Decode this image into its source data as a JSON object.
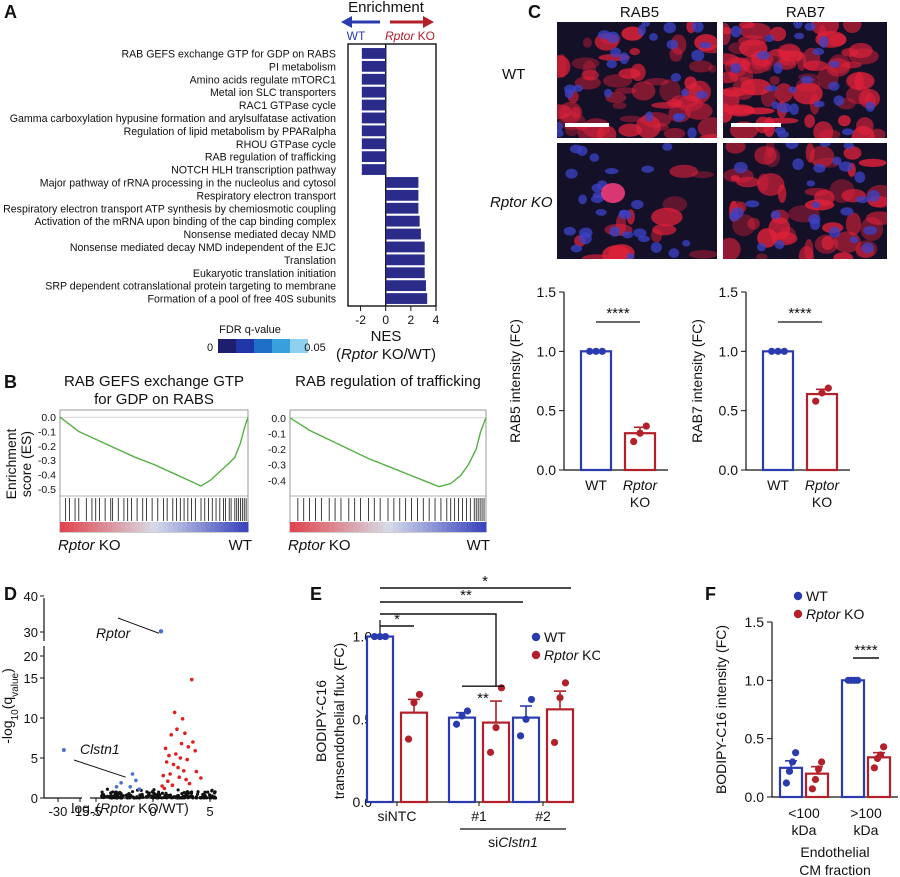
{
  "panels": {
    "A": "A",
    "B": "B",
    "C": "C",
    "D": "D",
    "E": "E",
    "F": "F"
  },
  "colors": {
    "wt": "#2a3bb0",
    "ko": "#b3202a",
    "nes_bar": "#2b2b8a",
    "gsea_line": "#55b043",
    "sig_point": "#e02020",
    "ns_point": "#111111",
    "blue_point": "#4a6fd0"
  },
  "chart_data": [
    {
      "id": "A",
      "type": "bar",
      "orientation": "horizontal",
      "title": "Enrichment",
      "arrow_left": "WT",
      "arrow_right_italic": "Rptor",
      "arrow_right_rest": " KO",
      "xlabel": "NES",
      "xlabel2_italic": "Rptor",
      "xlabel2_rest": " KO/WT)",
      "xlim": [
        -3,
        4
      ],
      "xticks": [
        "-2",
        "0",
        "2",
        "4"
      ],
      "categories": [
        "RAB GEFS exchange GTP for GDP on RABS",
        "PI metabolism",
        "Amino acids regulate mTORC1",
        "Metal ion SLC transporters",
        "RAC1 GTPase cycle",
        "Gamma carboxylation hypusine formation and arylsulfatase activation",
        "Regulation of lipid metabolism by PPARalpha",
        "RHOU GTPase cycle",
        "RAB regulation of trafficking",
        "NOTCH HLH transcription pathway",
        "Major pathway of rRNA processing in the nucleolus and cytosol",
        "Respiratory electron transport",
        "Respiratory electron transport ATP synthesis by chemiosmotic coupling",
        "Activation of the mRNA upon binding of the cap binding complex",
        "Nonsense mediated decay NMD",
        "Nonsense mediated decay NMD independent of the EJC",
        "Translation",
        "Eukaryotic translation initiation",
        "SRP dependent cotranslational protein targeting to membrane",
        "Formation of a pool of free 40S subunits"
      ],
      "values": [
        -1.9,
        -1.9,
        -1.9,
        -1.9,
        -1.9,
        -1.9,
        -1.9,
        -1.9,
        -1.9,
        -1.9,
        2.6,
        2.6,
        2.6,
        2.7,
        2.8,
        3.1,
        3.1,
        3.1,
        3.2,
        3.3
      ],
      "fdr_legend": {
        "title": "FDR q-value",
        "min": "0",
        "max": "0.05",
        "colors": [
          "#1e1e6e",
          "#2036a8",
          "#1f6fc9",
          "#3aa0dd",
          "#8fd0ee"
        ]
      }
    },
    {
      "id": "B1",
      "type": "line",
      "title_lines": [
        "RAB GEFS exchange GTP",
        "for GDP on RABS"
      ],
      "ylabel_lines": [
        "Enrichment",
        "score (ES)"
      ],
      "ylim": [
        -0.55,
        0.05
      ],
      "yticks": [
        "0.0",
        "-0.1",
        "-0.2",
        "-0.3",
        "-0.4",
        "-0.5"
      ],
      "ytick_values": [
        0,
        -0.1,
        -0.2,
        -0.3,
        -0.4,
        -0.5
      ],
      "x": [
        0,
        0.05,
        0.1,
        0.2,
        0.3,
        0.4,
        0.5,
        0.6,
        0.7,
        0.75,
        0.8,
        0.85,
        0.9,
        0.93,
        0.96,
        0.98,
        1.0
      ],
      "y": [
        0.0,
        -0.05,
        -0.1,
        -0.16,
        -0.22,
        -0.28,
        -0.33,
        -0.39,
        -0.45,
        -0.48,
        -0.44,
        -0.38,
        -0.32,
        -0.28,
        -0.18,
        -0.08,
        0.0
      ],
      "hits": [
        0.03,
        0.05,
        0.08,
        0.1,
        0.14,
        0.17,
        0.19,
        0.21,
        0.24,
        0.27,
        0.28,
        0.31,
        0.34,
        0.36,
        0.38,
        0.41,
        0.44,
        0.46,
        0.49,
        0.52,
        0.55,
        0.57,
        0.6,
        0.62,
        0.64,
        0.66,
        0.68,
        0.7,
        0.72,
        0.75,
        0.77,
        0.79,
        0.81,
        0.83,
        0.85,
        0.87,
        0.88,
        0.9,
        0.91,
        0.93,
        0.94,
        0.95,
        0.96,
        0.97,
        0.98,
        0.99
      ],
      "left_label_italic": "Rptor",
      "left_label_rest": " KO",
      "right_label": "WT"
    },
    {
      "id": "B2",
      "type": "line",
      "title_lines": [
        "RAB regulation of trafficking"
      ],
      "ylim": [
        -0.5,
        0.05
      ],
      "yticks": [
        "0.0",
        "-0.1",
        "-0.2",
        "-0.3",
        "-0.4"
      ],
      "ytick_values": [
        0,
        -0.1,
        -0.2,
        -0.3,
        -0.4
      ],
      "x": [
        0,
        0.05,
        0.1,
        0.2,
        0.3,
        0.4,
        0.5,
        0.6,
        0.7,
        0.76,
        0.82,
        0.87,
        0.91,
        0.95,
        0.97,
        0.99,
        1.0
      ],
      "y": [
        0.0,
        -0.04,
        -0.08,
        -0.14,
        -0.2,
        -0.26,
        -0.31,
        -0.36,
        -0.41,
        -0.44,
        -0.42,
        -0.37,
        -0.3,
        -0.2,
        -0.1,
        -0.03,
        0.0
      ],
      "hits": [
        0.04,
        0.07,
        0.1,
        0.13,
        0.16,
        0.2,
        0.23,
        0.26,
        0.3,
        0.33,
        0.36,
        0.4,
        0.43,
        0.46,
        0.5,
        0.53,
        0.56,
        0.59,
        0.62,
        0.65,
        0.68,
        0.71,
        0.74,
        0.77,
        0.8,
        0.82,
        0.84,
        0.86,
        0.88,
        0.9,
        0.92,
        0.94,
        0.95,
        0.96,
        0.97,
        0.98,
        0.99
      ],
      "left_label_italic": "Rptor",
      "left_label_rest": " KO",
      "right_label": "WT"
    },
    {
      "id": "C1",
      "type": "bar",
      "ylabel": "RAB5 intensity (FC)",
      "ylim": [
        0,
        1.5
      ],
      "yticks": [
        "0.0",
        "0.5",
        "1.0",
        "1.5"
      ],
      "ytick_values": [
        0,
        0.5,
        1.0,
        1.5
      ],
      "categories": [
        "WT",
        "Rptor KO"
      ],
      "cat_lines": [
        [
          "WT"
        ],
        [
          "Rptor",
          "KO"
        ]
      ],
      "values": [
        1.0,
        0.31
      ],
      "errors": [
        0.0,
        0.05
      ],
      "points": [
        [
          1.0,
          1.0,
          1.0
        ],
        [
          0.24,
          0.31,
          0.37
        ]
      ],
      "significance": "****"
    },
    {
      "id": "C2",
      "type": "bar",
      "ylabel": "RAB7 intensity (FC)",
      "ylim": [
        0,
        1.5
      ],
      "yticks": [
        "0.0",
        "0.5",
        "1.0",
        "1.5"
      ],
      "ytick_values": [
        0,
        0.5,
        1.0,
        1.5
      ],
      "categories": [
        "WT",
        "Rptor KO"
      ],
      "cat_lines": [
        [
          "WT"
        ],
        [
          "Rptor",
          "KO"
        ]
      ],
      "values": [
        1.0,
        0.64
      ],
      "errors": [
        0.0,
        0.04
      ],
      "points": [
        [
          1.0,
          1.0,
          1.0
        ],
        [
          0.58,
          0.65,
          0.69
        ]
      ],
      "significance": "****"
    },
    {
      "id": "D",
      "type": "scatter",
      "xlabel_pre": "log",
      "xlabel_sub": "2",
      "xlabel_open": "(",
      "xlabel_italic": "Rptor",
      "xlabel_rest": " KO/WT)",
      "ylabel_pre": "-log",
      "ylabel_sub": "10",
      "ylabel_q": "(q",
      "ylabel_qsub": "value",
      "ylabel_close": ")",
      "xticks": [
        "-30",
        "-15",
        "-5",
        "0",
        "5"
      ],
      "yticks": [
        "0",
        "5",
        "10",
        "15",
        "20",
        "30",
        "40"
      ],
      "labels": [
        {
          "text": "Rptor",
          "x": 0.7,
          "y": 30
        },
        {
          "text": "Clstn1",
          "x": -2.4,
          "y": 2.5
        }
      ],
      "rptor_point": [
        0.7,
        30.2
      ],
      "outlier_point": [
        -26,
        6
      ],
      "clstn1_point": [
        -2.4,
        2.6
      ],
      "sig_points": [
        [
          1.0,
          1.2
        ],
        [
          1.3,
          2.1
        ],
        [
          1.5,
          3.0
        ],
        [
          1.8,
          4.2
        ],
        [
          2.0,
          5.5
        ],
        [
          2.3,
          2.6
        ],
        [
          2.5,
          6.8
        ],
        [
          2.7,
          3.4
        ],
        [
          3.0,
          4.8
        ],
        [
          3.2,
          1.8
        ],
        [
          3.4,
          14.8
        ],
        [
          1.6,
          7.9
        ],
        [
          2.1,
          8.6
        ],
        [
          1.2,
          4.5
        ],
        [
          0.9,
          2.8
        ],
        [
          2.6,
          9.9
        ],
        [
          3.7,
          5.9
        ],
        [
          1.9,
          10.7
        ],
        [
          2.9,
          2.3
        ],
        [
          3.8,
          3.3
        ],
        [
          1.1,
          6.2
        ],
        [
          2.2,
          3.8
        ],
        [
          3.5,
          7.0
        ],
        [
          1.7,
          1.6
        ],
        [
          2.4,
          5.0
        ],
        [
          4.2,
          2.5
        ],
        [
          0.8,
          1.5
        ],
        [
          3.1,
          6.4
        ],
        [
          2.8,
          8.1
        ],
        [
          1.4,
          5.3
        ]
      ],
      "blue_points": [
        [
          -2.0,
          1.4
        ],
        [
          -1.5,
          2.2
        ],
        [
          -2.8,
          1.9
        ],
        [
          -1.2,
          1.1
        ],
        [
          -3.2,
          1.4
        ],
        [
          -1.8,
          3.0
        ]
      ],
      "ns_spread": {
        "xmin": -4.5,
        "xmax": 5.5,
        "ymax": 1.2
      }
    },
    {
      "id": "E",
      "type": "bar",
      "ylabel_lines": [
        "BODIPY-C16",
        "transendothelial flux (FC)"
      ],
      "ylim": [
        0,
        1.1
      ],
      "yticks": [
        "0.0",
        "0.5",
        "1.0"
      ],
      "ytick_values": [
        0,
        0.5,
        1.0
      ],
      "categories": [
        "siNTC",
        "#1",
        "#2"
      ],
      "group_bracket_pre": "si",
      "group_bracket_italic": "Clstn1",
      "series": [
        {
          "name": "WT",
          "values": [
            1.0,
            0.51,
            0.51
          ],
          "errors": [
            0.0,
            0.03,
            0.07
          ],
          "points": [
            [
              1.0,
              1.0,
              1.0
            ],
            [
              0.47,
              0.52,
              0.55
            ],
            [
              0.4,
              0.5,
              0.62
            ]
          ]
        },
        {
          "name": "Rptor KO",
          "name_italic": "Rptor",
          "name_rest": " KO",
          "values": [
            0.54,
            0.48,
            0.56
          ],
          "errors": [
            0.08,
            0.13,
            0.11
          ],
          "points": [
            [
              0.38,
              0.6,
              0.65
            ],
            [
              0.3,
              0.45,
              0.69
            ],
            [
              0.36,
              0.63,
              0.72
            ]
          ]
        }
      ],
      "significance": [
        {
          "label": "*",
          "level": "top"
        },
        {
          "label": "**",
          "level": "middle"
        },
        {
          "label": "*",
          "level": "pair"
        },
        {
          "label": "**",
          "level": "cross"
        }
      ]
    },
    {
      "id": "F",
      "type": "bar",
      "ylabel": "BODIPY-C16 intensity (FC)",
      "ylim": [
        0,
        1.5
      ],
      "yticks": [
        "0.0",
        "0.5",
        "1.0",
        "1.5"
      ],
      "ytick_values": [
        0,
        0.5,
        1.0,
        1.5
      ],
      "cat_lines": [
        [
          "<100",
          "kDa"
        ],
        [
          ">100",
          "kDa"
        ]
      ],
      "xlabel_lines": [
        "Endothelial",
        "CM fraction"
      ],
      "series": [
        {
          "name": "WT",
          "values": [
            0.25,
            1.0
          ],
          "errors": [
            0.06,
            0.0
          ],
          "points": [
            [
              0.12,
              0.22,
              0.3,
              0.38
            ],
            [
              1.0,
              1.0,
              1.0,
              1.0
            ]
          ]
        },
        {
          "name": "Rptor KO",
          "name_italic": "Rptor",
          "name_rest": " KO",
          "values": [
            0.2,
            0.34
          ],
          "errors": [
            0.06,
            0.04
          ],
          "points": [
            [
              0.07,
              0.15,
              0.24,
              0.3
            ],
            [
              0.25,
              0.33,
              0.36,
              0.43
            ]
          ]
        }
      ],
      "significance": "****"
    }
  ],
  "microscopy": {
    "col_labels": [
      "RAB5",
      "RAB7"
    ],
    "row_labels": [
      "WT",
      "Rptor KO"
    ]
  }
}
